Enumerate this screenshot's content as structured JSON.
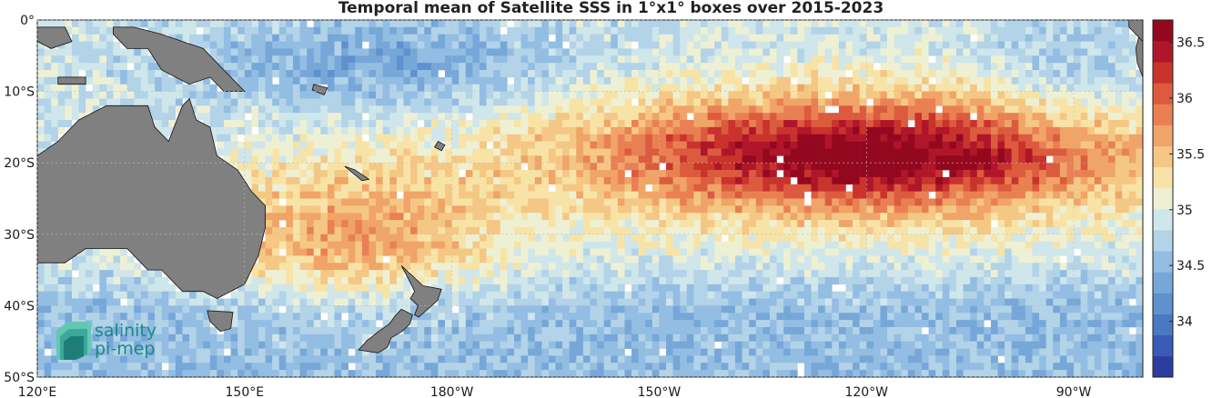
{
  "title": "Temporal mean of Satellite SSS in 1°x1° boxes over 2015-2023",
  "logo": {
    "line1": "salinity",
    "line2": "pi-mep",
    "brand_color": "#1a8a86"
  },
  "lat_ticks": [
    "0°",
    "10°S",
    "20°S",
    "30°S",
    "40°S",
    "50°S"
  ],
  "lon_ticks": [
    "120°E",
    "150°E",
    "180°W",
    "150°W",
    "120°W",
    "90°W"
  ],
  "colorbar": {
    "min": 33.5,
    "max": 36.7,
    "tick_values": [
      34,
      34.5,
      35,
      35.5,
      36,
      36.5
    ],
    "tick_labels": [
      "34",
      "34.5",
      "35",
      "35.5",
      "36",
      "36.5"
    ],
    "colors": [
      "#2b3d9e",
      "#3a5cb8",
      "#4a78c4",
      "#5f91cf",
      "#77a7d8",
      "#93bde2",
      "#b2d3e8",
      "#cfe6ea",
      "#eef0d4",
      "#f8e3a6",
      "#f5c784",
      "#f0a468",
      "#e98053",
      "#dc5b3e",
      "#c9332c",
      "#b0162a",
      "#94081f"
    ]
  },
  "land_color": "#808080",
  "map_extent": {
    "lon_min": 120,
    "lon_max": 280,
    "lat_min": -50,
    "lat_max": 0
  }
}
